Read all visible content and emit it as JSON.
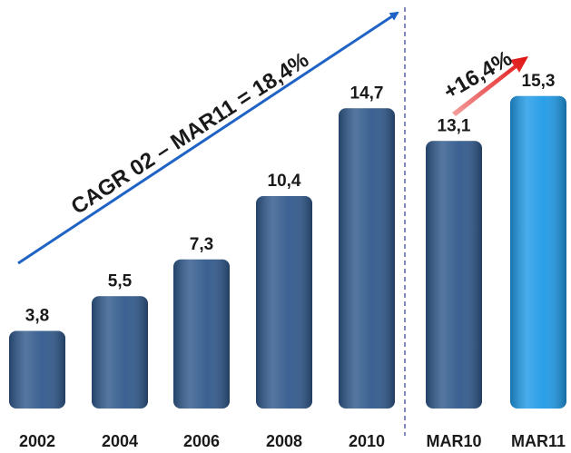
{
  "chart_data": {
    "type": "bar",
    "categories": [
      "2002",
      "2004",
      "2006",
      "2008",
      "2010",
      "MAR10",
      "MAR11"
    ],
    "values": [
      3.8,
      5.5,
      7.3,
      10.4,
      14.7,
      13.1,
      15.3
    ],
    "value_labels": [
      "3,8",
      "5,5",
      "7,3",
      "10,4",
      "14,7",
      "13,1",
      "15,3"
    ],
    "colors": [
      "#30598c",
      "#30598c",
      "#30598c",
      "#30598c",
      "#30598c",
      "#30598c",
      "#1f9ae6"
    ],
    "annotations": [
      "CAGR 02 – MAR11 = 18,4%",
      "+16,4%"
    ]
  }
}
